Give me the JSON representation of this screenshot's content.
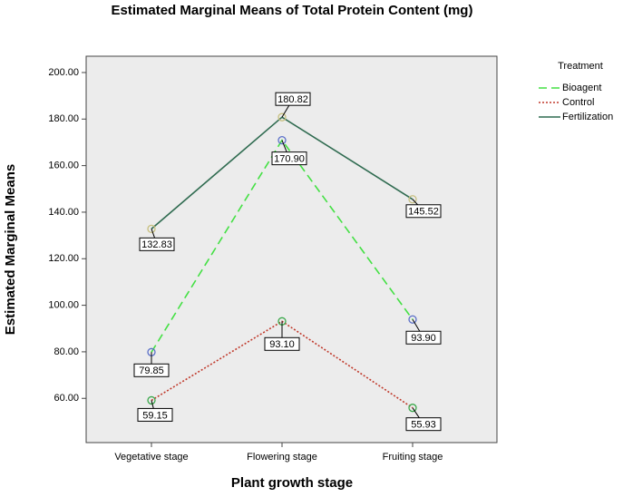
{
  "chart_data": {
    "type": "line",
    "title": "Estimated Marginal Means of Total Protein Content (mg)",
    "x_label": "Plant growth stage",
    "y_label": "Estimated Marginal Means",
    "legend_title": "Treatment",
    "legend_position": "right",
    "categories": [
      "Vegetative stage",
      "Flowering stage",
      "Fruiting stage"
    ],
    "ylim": [
      41,
      207
    ],
    "yticks": [
      {
        "value": 60,
        "label": "60.00"
      },
      {
        "value": 80,
        "label": "80.00"
      },
      {
        "value": 100,
        "label": "100.00"
      },
      {
        "value": 120,
        "label": "120.00"
      },
      {
        "value": 140,
        "label": "140.00"
      },
      {
        "value": 160,
        "label": "160.00"
      },
      {
        "value": 180,
        "label": "180.00"
      },
      {
        "value": 200,
        "label": "200.00"
      }
    ],
    "series": [
      {
        "name": "Bioagent",
        "color": "#44e044",
        "dash": "9,5",
        "marker_color": "#5a6fc8",
        "values": [
          79.85,
          170.9,
          93.9
        ],
        "value_labels": [
          "79.85",
          "170.90",
          "93.90"
        ]
      },
      {
        "name": "Control",
        "color": "#c0392b",
        "dash": "2,2",
        "marker_color": "#3aa84a",
        "values": [
          59.15,
          93.1,
          55.93
        ],
        "value_labels": [
          "59.15",
          "93.10",
          "55.93"
        ]
      },
      {
        "name": "Fertilization",
        "color": "#2f6b50",
        "dash": "",
        "marker_color": "#c8c080",
        "values": [
          132.83,
          180.82,
          145.52
        ],
        "value_labels": [
          "132.83",
          "180.82",
          "145.52"
        ]
      }
    ]
  }
}
